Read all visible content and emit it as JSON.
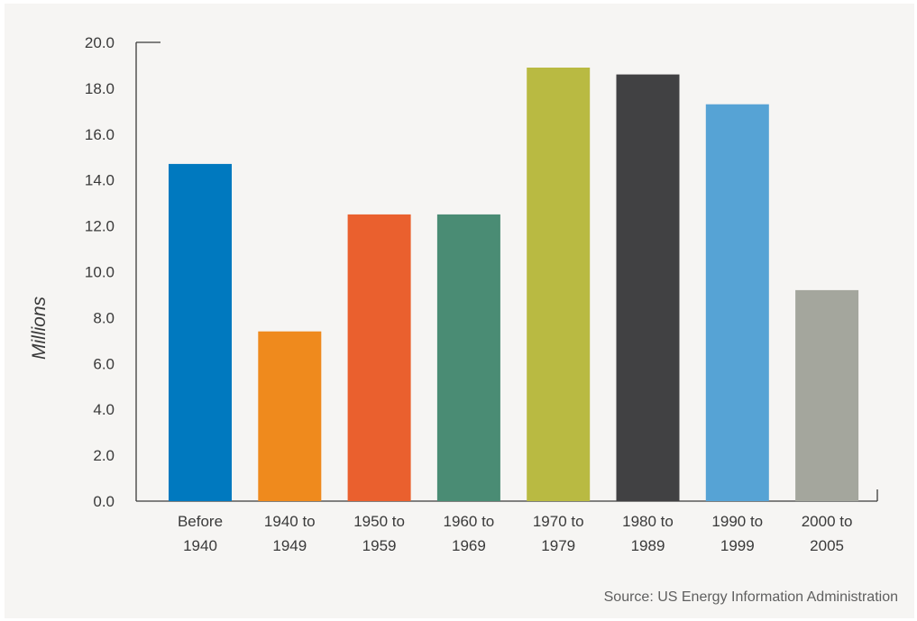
{
  "chart_data": {
    "type": "bar",
    "categories": [
      [
        "Before",
        "1940"
      ],
      [
        "1940 to",
        "1949"
      ],
      [
        "1950 to",
        "1959"
      ],
      [
        "1960 to",
        "1969"
      ],
      [
        "1970 to",
        "1979"
      ],
      [
        "1980 to",
        "1989"
      ],
      [
        "1990 to",
        "1999"
      ],
      [
        "2000 to",
        "2005"
      ]
    ],
    "values": [
      14.7,
      7.4,
      12.5,
      12.5,
      18.9,
      18.6,
      17.3,
      9.2
    ],
    "colors": [
      "#0079bf",
      "#ef8a1d",
      "#ea602e",
      "#4a8c74",
      "#b9ba42",
      "#414143",
      "#56a3d5",
      "#a4a69d"
    ],
    "ylabel": "Millions",
    "ylim": [
      0,
      20
    ],
    "yticks": [
      "0.0",
      "2.0",
      "4.0",
      "6.0",
      "8.0",
      "10.0",
      "12.0",
      "14.0",
      "16.0",
      "18.0",
      "20.0"
    ],
    "grid": false,
    "legend": "none"
  },
  "source": "Source: US Energy Information Administration"
}
